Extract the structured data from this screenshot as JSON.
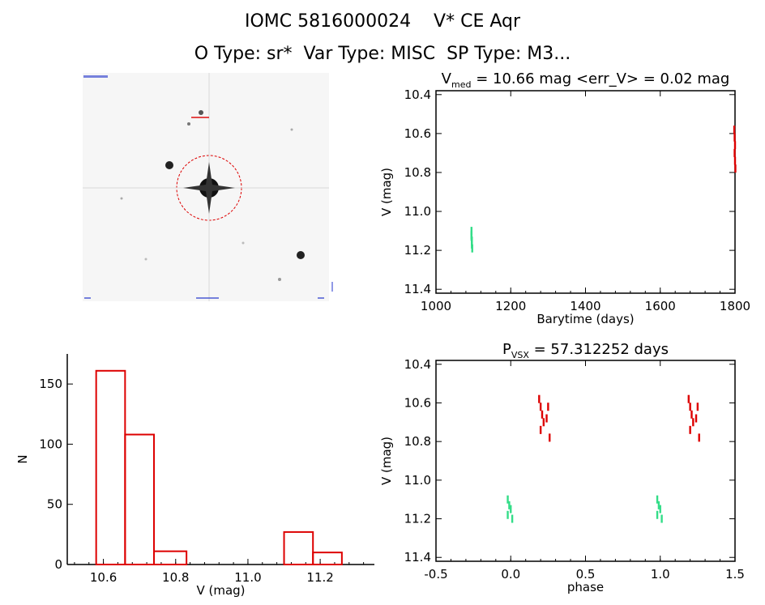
{
  "header": {
    "title": "IOMC 5816000024    V* CE Aqr",
    "subtitle": "O Type: sr*  Var Type: MISC  SP Type: M3..."
  },
  "colors": {
    "red": "#dd0000",
    "green": "#33dd88",
    "axis": "#000000"
  },
  "chart_data": [
    {
      "type": "heatmap",
      "name": "finder-image",
      "description_labels": []
    },
    {
      "type": "scatter",
      "title_parts": {
        "v": "V",
        "sub": "med",
        "rest": " = 10.66 mag <err_V> = 0.02 mag"
      },
      "xlabel": "Barytime (days)",
      "ylabel": "V (mag)",
      "xlim": [
        1000,
        1800
      ],
      "ylim": [
        11.42,
        10.38
      ],
      "xticks": [
        "1000",
        "1200",
        "1400",
        "1600",
        "1800"
      ],
      "yticks": [
        "10.4",
        "10.6",
        "10.8",
        "11.0",
        "11.2",
        "11.4"
      ],
      "series": [
        {
          "color": "green",
          "x": [
            1095,
            1095,
            1096,
            1096,
            1097,
            1095,
            1096
          ],
          "y": [
            11.1,
            11.13,
            11.15,
            11.17,
            11.19,
            11.12,
            11.16
          ]
        },
        {
          "color": "red",
          "x": [
            1798,
            1799,
            1800,
            1799,
            1800,
            1801
          ],
          "y": [
            10.58,
            10.62,
            10.66,
            10.7,
            10.74,
            10.78
          ]
        }
      ]
    },
    {
      "type": "bar",
      "xlabel": "V (mag)",
      "ylabel": "N",
      "xlim": [
        10.5,
        11.35
      ],
      "ylim": [
        0,
        175
      ],
      "xticks": [
        "10.6",
        "10.8",
        "11.0",
        "11.2"
      ],
      "yticks": [
        "0",
        "50",
        "100",
        "150"
      ],
      "bins": [
        {
          "x0": 10.58,
          "x1": 10.66,
          "value": 161
        },
        {
          "x0": 10.66,
          "x1": 10.74,
          "value": 108
        },
        {
          "x0": 10.74,
          "x1": 10.83,
          "value": 11
        },
        {
          "x0": 11.1,
          "x1": 11.18,
          "value": 27
        },
        {
          "x0": 11.18,
          "x1": 11.26,
          "value": 10
        }
      ]
    },
    {
      "type": "scatter",
      "title_parts": {
        "v": "P",
        "sub": "VSX",
        "rest": " = 57.312252 days"
      },
      "xlabel": "phase",
      "ylabel": "V (mag)",
      "xlim": [
        -0.5,
        1.5
      ],
      "ylim": [
        11.42,
        10.38
      ],
      "xticks": [
        "-0.5",
        "0.0",
        "0.5",
        "1.0",
        "1.5"
      ],
      "yticks": [
        "10.4",
        "10.6",
        "10.8",
        "11.0",
        "11.2",
        "11.4"
      ],
      "series": [
        {
          "color": "green",
          "x": [
            -0.02,
            -0.01,
            0.0,
            -0.02,
            0.01,
            0.98,
            0.99,
            1.0,
            0.98,
            1.01
          ],
          "y": [
            11.1,
            11.13,
            11.15,
            11.18,
            11.2,
            11.1,
            11.13,
            11.15,
            11.18,
            11.2
          ]
        },
        {
          "color": "red",
          "x": [
            0.19,
            0.2,
            0.21,
            0.22,
            0.25,
            0.26,
            0.2,
            0.24,
            1.19,
            1.2,
            1.21,
            1.22,
            1.25,
            1.26,
            1.2,
            1.24
          ],
          "y": [
            10.58,
            10.62,
            10.66,
            10.7,
            10.62,
            10.78,
            10.74,
            10.68,
            10.58,
            10.62,
            10.66,
            10.7,
            10.62,
            10.78,
            10.74,
            10.68
          ]
        }
      ]
    }
  ]
}
